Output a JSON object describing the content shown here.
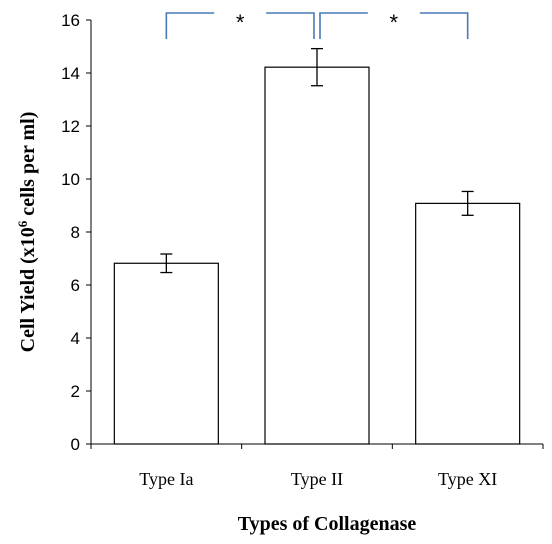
{
  "chart_data": {
    "type": "bar",
    "title": "",
    "xlabel": "Types of Collagenase",
    "ylabel": {
      "prefix": "Cell Yield (x10",
      "superscript": "6",
      "suffix": " cells per ml)"
    },
    "ylim": [
      0,
      16
    ],
    "yticks": [
      "0",
      "2",
      "4",
      "6",
      "8",
      "10",
      "12",
      "14",
      "16"
    ],
    "categories": [
      "Type Ia",
      "Type II",
      "Type XI"
    ],
    "values": [
      6.82,
      14.22,
      9.08
    ],
    "errors": [
      0.35,
      0.7,
      0.45
    ],
    "bar_fill": "#ffffff",
    "bar_stroke": "#000000",
    "bracket_color": "#4a7ab5",
    "grid": false,
    "legend": "none",
    "significance": [
      {
        "from": 0,
        "to": 1,
        "label": "*"
      },
      {
        "from": 1,
        "to": 2,
        "label": "*"
      }
    ]
  }
}
